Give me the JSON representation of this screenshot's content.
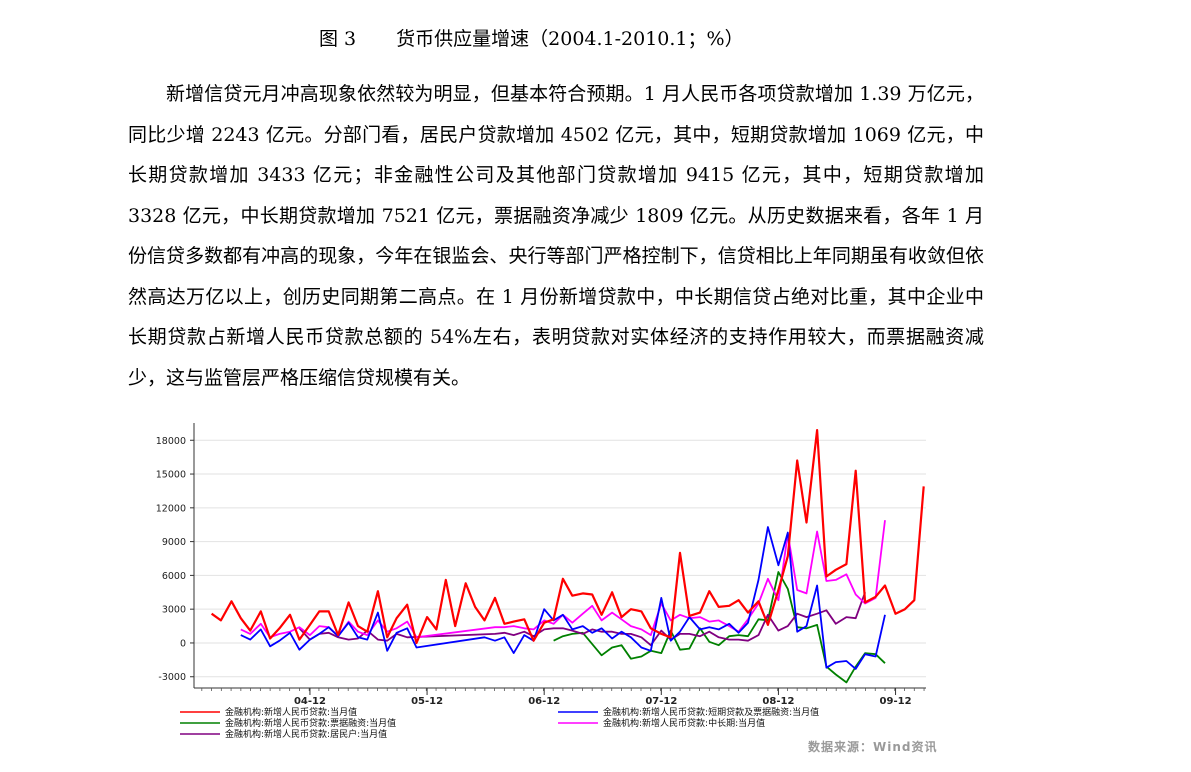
{
  "caption": {
    "figure_no": "图 3",
    "title": "货币供应量增速（2004.1-2010.1；%）"
  },
  "paragraph": "新增信贷元月冲高现象依然较为明显，但基本符合预期。1 月人民币各项贷款增加 1.39 万亿元，同比少增 2243 亿元。分部门看，居民户贷款增加 4502 亿元，其中，短期贷款增加 1069 亿元，中长期贷款增加 3433 亿元；非金融性公司及其他部门贷款增加 9415 亿元，其中，短期贷款增加 3328 亿元，中长期贷款增加 7521 亿元，票据融资净减少 1809 亿元。从历史数据来看，各年 1 月份信贷多数都有冲高的现象，今年在银监会、央行等部门严格控制下，信贷相比上年同期虽有收敛但依然高达万亿以上，创历史同期第二高点。在 1 月份新增贷款中，中长期信贷占绝对比重，其中企业中长期贷款占新增人民币贷款总额的 54%左右，表明贷款对实体经济的支持作用较大，而票据融资减少，这与监管层严格压缩信贷规模有关。",
  "source": "数据来源：Wind资讯",
  "chart_data": {
    "type": "line",
    "title": "",
    "xlabel": "",
    "ylabel": "",
    "ylim": [
      -4000,
      19000
    ],
    "yticks": [
      18000,
      15000,
      12000,
      9000,
      6000,
      3000,
      0,
      -3000
    ],
    "xlim": [
      2003.85,
      2010.1
    ],
    "xtick_labels": [
      {
        "x": 2004.84,
        "label": "04-12"
      },
      {
        "x": 2005.84,
        "label": "05-12"
      },
      {
        "x": 2006.84,
        "label": "06-12"
      },
      {
        "x": 2007.84,
        "label": "07-12"
      },
      {
        "x": 2008.84,
        "label": "08-12"
      },
      {
        "x": 2009.84,
        "label": "09-12"
      }
    ],
    "grid": true,
    "legend": "bottom",
    "series": [
      {
        "name": "金融机构:新增人民币贷款:当月值",
        "color": "#ff0000",
        "points": [
          [
            2004.0,
            2600
          ],
          [
            2004.08,
            2000
          ],
          [
            2004.17,
            3700
          ],
          [
            2004.25,
            2200
          ],
          [
            2004.33,
            1100
          ],
          [
            2004.42,
            2800
          ],
          [
            2004.5,
            400
          ],
          [
            2004.58,
            1300
          ],
          [
            2004.67,
            2500
          ],
          [
            2004.75,
            300
          ],
          [
            2004.84,
            1600
          ],
          [
            2004.92,
            2800
          ],
          [
            2005.0,
            2800
          ],
          [
            2005.08,
            700
          ],
          [
            2005.17,
            3600
          ],
          [
            2005.25,
            1500
          ],
          [
            2005.33,
            1000
          ],
          [
            2005.42,
            4600
          ],
          [
            2005.5,
            500
          ],
          [
            2005.58,
            2200
          ],
          [
            2005.67,
            3400
          ],
          [
            2005.75,
            0
          ],
          [
            2005.84,
            2300
          ],
          [
            2005.92,
            1200
          ],
          [
            2006.0,
            5600
          ],
          [
            2006.08,
            1500
          ],
          [
            2006.17,
            5300
          ],
          [
            2006.25,
            3200
          ],
          [
            2006.33,
            2000
          ],
          [
            2006.42,
            4000
          ],
          [
            2006.5,
            1700
          ],
          [
            2006.58,
            1900
          ],
          [
            2006.67,
            2100
          ],
          [
            2006.75,
            200
          ],
          [
            2006.84,
            1800
          ],
          [
            2006.92,
            2100
          ],
          [
            2007.0,
            5700
          ],
          [
            2007.08,
            4200
          ],
          [
            2007.17,
            4400
          ],
          [
            2007.25,
            4300
          ],
          [
            2007.33,
            2500
          ],
          [
            2007.42,
            4500
          ],
          [
            2007.5,
            2300
          ],
          [
            2007.58,
            3000
          ],
          [
            2007.67,
            2800
          ],
          [
            2007.75,
            1300
          ],
          [
            2007.84,
            800
          ],
          [
            2007.92,
            500
          ],
          [
            2008.0,
            8000
          ],
          [
            2008.08,
            2400
          ],
          [
            2008.17,
            2700
          ],
          [
            2008.25,
            4600
          ],
          [
            2008.33,
            3200
          ],
          [
            2008.42,
            3300
          ],
          [
            2008.5,
            3800
          ],
          [
            2008.58,
            2700
          ],
          [
            2008.67,
            3700
          ],
          [
            2008.75,
            1600
          ],
          [
            2008.84,
            4700
          ],
          [
            2008.92,
            7700
          ],
          [
            2009.0,
            16200
          ],
          [
            2009.08,
            10700
          ],
          [
            2009.17,
            18900
          ],
          [
            2009.25,
            5900
          ],
          [
            2009.33,
            6500
          ],
          [
            2009.42,
            7000
          ],
          [
            2009.5,
            15300
          ],
          [
            2009.58,
            3600
          ],
          [
            2009.67,
            4100
          ],
          [
            2009.75,
            5100
          ],
          [
            2009.84,
            2600
          ],
          [
            2009.92,
            3000
          ],
          [
            2010.0,
            3800
          ],
          [
            2010.08,
            13900
          ]
        ]
      },
      {
        "name": "金融机构:新增人民币贷款:短期贷款及票据融资:当月值",
        "color": "#0000ff",
        "points": [
          [
            2004.25,
            700
          ],
          [
            2004.33,
            300
          ],
          [
            2004.42,
            1200
          ],
          [
            2004.5,
            -300
          ],
          [
            2004.58,
            200
          ],
          [
            2004.67,
            900
          ],
          [
            2004.75,
            -600
          ],
          [
            2004.84,
            300
          ],
          [
            2004.92,
            800
          ],
          [
            2005.0,
            1400
          ],
          [
            2005.08,
            600
          ],
          [
            2005.17,
            1800
          ],
          [
            2005.25,
            500
          ],
          [
            2005.33,
            300
          ],
          [
            2005.42,
            2700
          ],
          [
            2005.5,
            -700
          ],
          [
            2005.58,
            900
          ],
          [
            2005.67,
            1300
          ],
          [
            2005.75,
            -400
          ],
          [
            2006.33,
            500
          ],
          [
            2006.42,
            200
          ],
          [
            2006.5,
            500
          ],
          [
            2006.58,
            -900
          ],
          [
            2006.67,
            700
          ],
          [
            2006.75,
            200
          ],
          [
            2006.84,
            3000
          ],
          [
            2006.92,
            2000
          ],
          [
            2007.0,
            2500
          ],
          [
            2007.08,
            1200
          ],
          [
            2007.17,
            1500
          ],
          [
            2007.25,
            900
          ],
          [
            2007.33,
            1300
          ],
          [
            2007.42,
            400
          ],
          [
            2007.5,
            1000
          ],
          [
            2007.58,
            500
          ],
          [
            2007.67,
            -400
          ],
          [
            2007.75,
            -700
          ],
          [
            2007.84,
            4000
          ],
          [
            2007.92,
            200
          ],
          [
            2008.0,
            1000
          ],
          [
            2008.08,
            2300
          ],
          [
            2008.17,
            1200
          ],
          [
            2008.25,
            1400
          ],
          [
            2008.33,
            1200
          ],
          [
            2008.42,
            1700
          ],
          [
            2008.5,
            900
          ],
          [
            2008.58,
            1800
          ],
          [
            2008.67,
            5600
          ],
          [
            2008.75,
            10300
          ],
          [
            2008.84,
            6900
          ],
          [
            2008.92,
            9800
          ],
          [
            2009.0,
            1000
          ],
          [
            2009.08,
            1500
          ],
          [
            2009.17,
            5100
          ],
          [
            2009.25,
            -2200
          ],
          [
            2009.33,
            -1700
          ],
          [
            2009.42,
            -1600
          ],
          [
            2009.5,
            -2300
          ],
          [
            2009.58,
            -1000
          ],
          [
            2009.67,
            -1200
          ],
          [
            2009.75,
            2500
          ]
        ]
      },
      {
        "name": "金融机构:新增人民币贷款:票据融资:当月值",
        "color": "#008000",
        "points": [
          [
            2006.92,
            200
          ],
          [
            2007.0,
            600
          ],
          [
            2007.08,
            800
          ],
          [
            2007.17,
            900
          ],
          [
            2007.25,
            -100
          ],
          [
            2007.33,
            -1100
          ],
          [
            2007.42,
            -400
          ],
          [
            2007.5,
            -200
          ],
          [
            2007.58,
            -1400
          ],
          [
            2007.67,
            -1200
          ],
          [
            2007.75,
            -700
          ],
          [
            2007.84,
            -900
          ],
          [
            2007.92,
            1100
          ],
          [
            2008.0,
            -600
          ],
          [
            2008.08,
            -500
          ],
          [
            2008.17,
            1300
          ],
          [
            2008.25,
            100
          ],
          [
            2008.33,
            -200
          ],
          [
            2008.42,
            600
          ],
          [
            2008.5,
            700
          ],
          [
            2008.58,
            600
          ],
          [
            2008.67,
            2100
          ],
          [
            2008.75,
            2000
          ],
          [
            2008.84,
            6300
          ],
          [
            2008.92,
            4800
          ],
          [
            2009.0,
            1400
          ],
          [
            2009.08,
            1300
          ],
          [
            2009.17,
            1600
          ],
          [
            2009.25,
            -2100
          ],
          [
            2009.33,
            -2800
          ],
          [
            2009.42,
            -3500
          ],
          [
            2009.5,
            -2100
          ],
          [
            2009.58,
            -900
          ],
          [
            2009.67,
            -1000
          ],
          [
            2009.75,
            -1800
          ]
        ]
      },
      {
        "name": "金融机构:新增人民币贷款:中长期:当月值",
        "color": "#ff00ff",
        "points": [
          [
            2004.25,
            1200
          ],
          [
            2004.33,
            800
          ],
          [
            2004.42,
            1700
          ],
          [
            2004.5,
            500
          ],
          [
            2004.58,
            800
          ],
          [
            2004.67,
            1000
          ],
          [
            2004.75,
            1400
          ],
          [
            2004.84,
            700
          ],
          [
            2004.92,
            1500
          ],
          [
            2005.0,
            1400
          ],
          [
            2005.08,
            600
          ],
          [
            2005.17,
            1900
          ],
          [
            2005.25,
            1000
          ],
          [
            2005.33,
            700
          ],
          [
            2005.42,
            2000
          ],
          [
            2005.5,
            1000
          ],
          [
            2005.58,
            1300
          ],
          [
            2005.67,
            1900
          ],
          [
            2005.75,
            500
          ],
          [
            2006.42,
            1400
          ],
          [
            2006.5,
            1400
          ],
          [
            2006.58,
            1500
          ],
          [
            2006.67,
            1300
          ],
          [
            2006.75,
            1200
          ],
          [
            2006.84,
            2000
          ],
          [
            2006.92,
            1700
          ],
          [
            2007.0,
            2500
          ],
          [
            2007.08,
            1800
          ],
          [
            2007.17,
            2600
          ],
          [
            2007.25,
            3300
          ],
          [
            2007.33,
            2000
          ],
          [
            2007.42,
            2700
          ],
          [
            2007.5,
            2100
          ],
          [
            2007.58,
            1500
          ],
          [
            2007.67,
            1200
          ],
          [
            2007.75,
            700
          ],
          [
            2007.84,
            3500
          ],
          [
            2007.92,
            2000
          ],
          [
            2008.0,
            2500
          ],
          [
            2008.08,
            2200
          ],
          [
            2008.17,
            2300
          ],
          [
            2008.25,
            1900
          ],
          [
            2008.33,
            2000
          ],
          [
            2008.42,
            1500
          ],
          [
            2008.5,
            1000
          ],
          [
            2008.58,
            2100
          ],
          [
            2008.67,
            3500
          ],
          [
            2008.75,
            5700
          ],
          [
            2008.84,
            3800
          ],
          [
            2008.92,
            9700
          ],
          [
            2009.0,
            4700
          ],
          [
            2009.08,
            4400
          ],
          [
            2009.17,
            9900
          ],
          [
            2009.25,
            5500
          ],
          [
            2009.33,
            5600
          ],
          [
            2009.42,
            6100
          ],
          [
            2009.5,
            4300
          ],
          [
            2009.58,
            3500
          ],
          [
            2009.67,
            4000
          ],
          [
            2009.75,
            10900
          ]
        ]
      },
      {
        "name": "金融机构:新增人民币贷款:居民户:当月值",
        "color": "#800080",
        "points": [
          [
            2004.75,
            1300
          ],
          [
            2004.84,
            300
          ],
          [
            2004.92,
            800
          ],
          [
            2005.0,
            900
          ],
          [
            2005.08,
            500
          ],
          [
            2005.17,
            300
          ],
          [
            2005.25,
            400
          ],
          [
            2005.33,
            1100
          ],
          [
            2005.42,
            300
          ],
          [
            2005.5,
            200
          ],
          [
            2005.58,
            800
          ],
          [
            2005.67,
            500
          ],
          [
            2006.42,
            800
          ],
          [
            2006.5,
            900
          ],
          [
            2006.58,
            700
          ],
          [
            2006.67,
            1000
          ],
          [
            2006.75,
            600
          ],
          [
            2006.84,
            1200
          ],
          [
            2006.92,
            1300
          ],
          [
            2007.0,
            1300
          ],
          [
            2007.08,
            1100
          ],
          [
            2007.17,
            800
          ],
          [
            2007.25,
            1200
          ],
          [
            2007.33,
            1000
          ],
          [
            2007.42,
            1000
          ],
          [
            2007.5,
            800
          ],
          [
            2007.58,
            800
          ],
          [
            2007.67,
            500
          ],
          [
            2007.75,
            -200
          ],
          [
            2007.84,
            1100
          ],
          [
            2007.92,
            300
          ],
          [
            2008.0,
            800
          ],
          [
            2008.08,
            800
          ],
          [
            2008.17,
            600
          ],
          [
            2008.25,
            1000
          ],
          [
            2008.33,
            500
          ],
          [
            2008.42,
            300
          ],
          [
            2008.5,
            300
          ],
          [
            2008.58,
            200
          ],
          [
            2008.67,
            700
          ],
          [
            2008.75,
            2500
          ],
          [
            2008.84,
            1100
          ],
          [
            2008.92,
            1500
          ],
          [
            2009.0,
            2600
          ],
          [
            2009.08,
            2300
          ],
          [
            2009.17,
            2600
          ],
          [
            2009.25,
            2900
          ],
          [
            2009.33,
            1700
          ],
          [
            2009.42,
            2300
          ],
          [
            2009.5,
            2200
          ],
          [
            2009.58,
            4500
          ]
        ]
      }
    ]
  }
}
